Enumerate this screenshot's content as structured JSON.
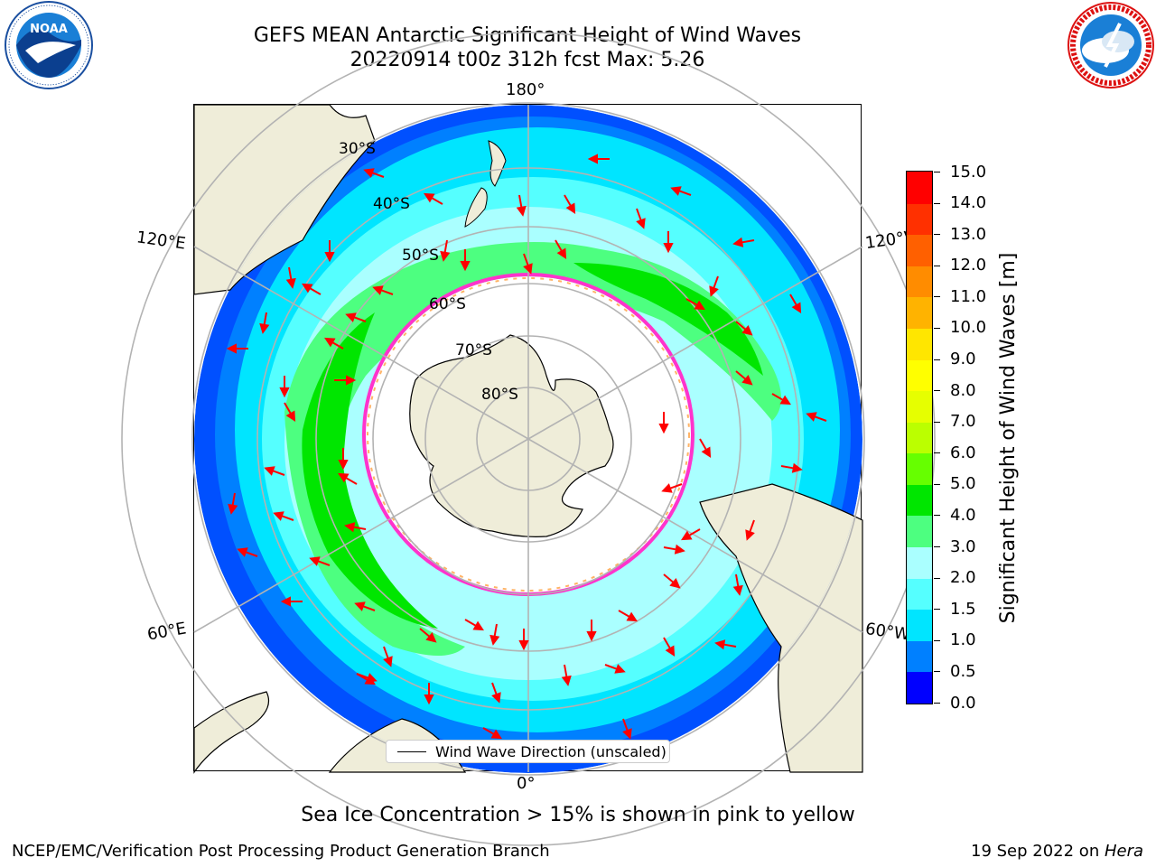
{
  "header": {
    "title_line1": "GEFS MEAN Antarctic Significant Height of Wind Waves",
    "title_line2": "20220914 t00z 312h fcst   Max: 5.26"
  },
  "logos": {
    "left": "noaa-logo",
    "left_text": "NOAA",
    "left_ring_text": "NATIONAL OCEANIC AND ATMOSPHERIC ADMINISTRATION · U.S. DEPARTMENT OF COMMERCE",
    "right": "nws-logo",
    "right_ring_text": "NATIONAL WEATHER SERVICE"
  },
  "map": {
    "projection": "south-polar-stereographic",
    "longitude_labels": {
      "top": "180°",
      "bottom": "0°",
      "upper_left": "120°E",
      "lower_left": "60°E",
      "upper_right": "120°W",
      "lower_right": "60°W"
    },
    "latitude_labels": [
      "30°S",
      "40°S",
      "50°S",
      "60°S",
      "70°S",
      "80°S"
    ],
    "legend_label": "Wind Wave Direction (unscaled)",
    "colors": {
      "land": "#efedd9",
      "ice_edge": "#ff33cc",
      "arrows": "#ff0000",
      "grid": "#b3b3b3"
    }
  },
  "colorbar": {
    "label": "Significant Height of Wind Waves [m]",
    "ticks": [
      "0.0",
      "0.5",
      "1.0",
      "1.5",
      "2.0",
      "3.0",
      "4.0",
      "5.0",
      "6.0",
      "7.0",
      "8.0",
      "9.0",
      "10.0",
      "11.0",
      "12.0",
      "13.0",
      "14.0",
      "15.0"
    ],
    "colors": [
      "#0000ff",
      "#0080ff",
      "#00e5ff",
      "#55ffff",
      "#aaffff",
      "#4dff80",
      "#00e600",
      "#66ff00",
      "#bbff00",
      "#e6ff00",
      "#ffff00",
      "#ffe600",
      "#ffb300",
      "#ff8c00",
      "#ff6000",
      "#ff3000",
      "#ff0000"
    ]
  },
  "footer": {
    "note": "Sea Ice Concentration > 15% is shown in pink to yellow",
    "left": "NCEP/EMC/Verification Post Processing Product Generation Branch",
    "right_prefix": "19 Sep 2022 on ",
    "right_host": "Hera"
  }
}
